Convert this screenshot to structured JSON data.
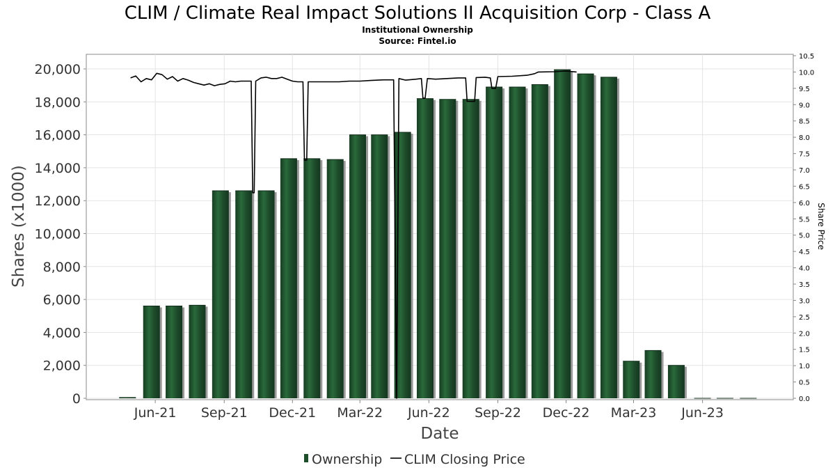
{
  "chart_data": {
    "type": "bar",
    "title": "CLIM / Climate Real Impact Solutions II Acquisition Corp - Class A",
    "subtitle_lines": [
      "Institutional Ownership",
      "Source: Fintel.io"
    ],
    "xlabel": "Date",
    "ylabel": "Shares (x1000)",
    "y2label": "Share Price",
    "ylim": [
      0,
      21000
    ],
    "y2lim": [
      0,
      10.5
    ],
    "yticks": [
      0,
      2000,
      4000,
      6000,
      8000,
      10000,
      12000,
      14000,
      16000,
      18000,
      20000
    ],
    "ytick_labels": [
      "0",
      "2,000",
      "4,000",
      "6,000",
      "8,000",
      "10,000",
      "12,000",
      "14,000",
      "16,000",
      "18,000",
      "20,000"
    ],
    "y2ticks": [
      "0.0",
      "0.5",
      "1.0",
      "1.5",
      "2.0",
      "2.5",
      "3.0",
      "3.5",
      "4.0",
      "4.5",
      "5.0",
      "5.5",
      "6.0",
      "6.5",
      "7.0",
      "7.5",
      "8.0",
      "8.5",
      "9.0",
      "9.5",
      "10.0",
      "10.5"
    ],
    "date_range": [
      "2021-03-01",
      "2023-09-30"
    ],
    "xticks": [
      {
        "label": "Jun-21",
        "date": "2021-06-01"
      },
      {
        "label": "Sep-21",
        "date": "2021-09-01"
      },
      {
        "label": "Dec-21",
        "date": "2021-12-01"
      },
      {
        "label": "Mar-22",
        "date": "2022-03-01"
      },
      {
        "label": "Jun-22",
        "date": "2022-06-01"
      },
      {
        "label": "Sep-22",
        "date": "2022-09-01"
      },
      {
        "label": "Dec-22",
        "date": "2022-12-01"
      },
      {
        "label": "Mar-23",
        "date": "2023-03-01"
      },
      {
        "label": "Jun-23",
        "date": "2023-06-01"
      }
    ],
    "grid": true,
    "legend_position": "bottom",
    "series": [
      {
        "name": "Ownership",
        "type": "bar",
        "color": "#1e4d2b",
        "points": [
          {
            "date": "2021-04-25",
            "value": 50
          },
          {
            "date": "2021-05-27",
            "value": 5600
          },
          {
            "date": "2021-06-26",
            "value": 5600
          },
          {
            "date": "2021-07-27",
            "value": 5650
          },
          {
            "date": "2021-08-27",
            "value": 12600
          },
          {
            "date": "2021-09-27",
            "value": 12600
          },
          {
            "date": "2021-10-27",
            "value": 12600
          },
          {
            "date": "2021-11-26",
            "value": 14550
          },
          {
            "date": "2021-12-27",
            "value": 14550
          },
          {
            "date": "2022-01-27",
            "value": 14500
          },
          {
            "date": "2022-02-26",
            "value": 16000
          },
          {
            "date": "2022-03-27",
            "value": 16000
          },
          {
            "date": "2022-04-27",
            "value": 16150
          },
          {
            "date": "2022-05-27",
            "value": 18200
          },
          {
            "date": "2022-06-26",
            "value": 18150
          },
          {
            "date": "2022-07-27",
            "value": 18150
          },
          {
            "date": "2022-08-27",
            "value": 18900
          },
          {
            "date": "2022-09-27",
            "value": 18900
          },
          {
            "date": "2022-10-27",
            "value": 19050
          },
          {
            "date": "2022-11-26",
            "value": 19950
          },
          {
            "date": "2022-12-27",
            "value": 19700
          },
          {
            "date": "2023-01-27",
            "value": 19500
          },
          {
            "date": "2023-02-26",
            "value": 2250
          },
          {
            "date": "2023-03-27",
            "value": 2900
          },
          {
            "date": "2023-04-27",
            "value": 2000
          },
          {
            "date": "2023-06-01",
            "value": 0
          },
          {
            "date": "2023-07-01",
            "value": 0
          },
          {
            "date": "2023-08-01",
            "value": 0
          }
        ]
      },
      {
        "name": "CLIM Closing Price",
        "type": "line",
        "color": "#000000",
        "points": [
          [
            "2021-04-29",
            9.82
          ],
          [
            "2021-05-06",
            9.88
          ],
          [
            "2021-05-13",
            9.7
          ],
          [
            "2021-05-20",
            9.8
          ],
          [
            "2021-05-27",
            9.76
          ],
          [
            "2021-06-03",
            9.96
          ],
          [
            "2021-06-10",
            9.92
          ],
          [
            "2021-06-17",
            9.78
          ],
          [
            "2021-06-24",
            9.86
          ],
          [
            "2021-07-01",
            9.72
          ],
          [
            "2021-07-08",
            9.8
          ],
          [
            "2021-07-15",
            9.75
          ],
          [
            "2021-07-22",
            9.68
          ],
          [
            "2021-07-29",
            9.64
          ],
          [
            "2021-08-05",
            9.6
          ],
          [
            "2021-08-12",
            9.64
          ],
          [
            "2021-08-19",
            9.58
          ],
          [
            "2021-08-26",
            9.62
          ],
          [
            "2021-09-02",
            9.64
          ],
          [
            "2021-09-09",
            9.72
          ],
          [
            "2021-09-16",
            9.7
          ],
          [
            "2021-09-23",
            9.72
          ],
          [
            "2021-09-30",
            9.72
          ],
          [
            "2021-10-07",
            9.72
          ],
          [
            "2021-10-09",
            6.3
          ],
          [
            "2021-10-11",
            6.3
          ],
          [
            "2021-10-13",
            9.72
          ],
          [
            "2021-10-20",
            9.82
          ],
          [
            "2021-10-27",
            9.84
          ],
          [
            "2021-11-03",
            9.8
          ],
          [
            "2021-11-10",
            9.8
          ],
          [
            "2021-11-17",
            9.84
          ],
          [
            "2021-11-24",
            9.78
          ],
          [
            "2021-12-01",
            9.72
          ],
          [
            "2021-12-08",
            9.7
          ],
          [
            "2021-12-15",
            9.7
          ],
          [
            "2021-12-17",
            7.3
          ],
          [
            "2021-12-20",
            7.3
          ],
          [
            "2021-12-22",
            9.7
          ],
          [
            "2021-12-29",
            9.7
          ],
          [
            "2022-01-15",
            9.7
          ],
          [
            "2022-02-01",
            9.7
          ],
          [
            "2022-02-15",
            9.72
          ],
          [
            "2022-03-01",
            9.72
          ],
          [
            "2022-03-15",
            9.74
          ],
          [
            "2022-04-01",
            9.76
          ],
          [
            "2022-04-15",
            9.76
          ],
          [
            "2022-04-19",
            0.0
          ],
          [
            "2022-04-22",
            9.8
          ],
          [
            "2022-05-01",
            9.75
          ],
          [
            "2022-05-15",
            9.78
          ],
          [
            "2022-05-22",
            9.8
          ],
          [
            "2022-05-24",
            9.2
          ],
          [
            "2022-05-27",
            9.2
          ],
          [
            "2022-05-30",
            9.8
          ],
          [
            "2022-06-10",
            9.78
          ],
          [
            "2022-06-25",
            9.8
          ],
          [
            "2022-07-10",
            9.82
          ],
          [
            "2022-07-20",
            9.82
          ],
          [
            "2022-07-22",
            9.1
          ],
          [
            "2022-08-01",
            9.1
          ],
          [
            "2022-08-03",
            9.83
          ],
          [
            "2022-08-15",
            9.84
          ],
          [
            "2022-08-22",
            9.82
          ],
          [
            "2022-08-24",
            9.5
          ],
          [
            "2022-08-29",
            9.5
          ],
          [
            "2022-09-01",
            9.86
          ],
          [
            "2022-09-20",
            9.87
          ],
          [
            "2022-10-10",
            9.9
          ],
          [
            "2022-10-20",
            9.95
          ],
          [
            "2022-10-25",
            10.0
          ],
          [
            "2022-11-15",
            10.01
          ],
          [
            "2022-12-01",
            10.03
          ],
          [
            "2022-12-15",
            10.0
          ]
        ]
      }
    ]
  }
}
